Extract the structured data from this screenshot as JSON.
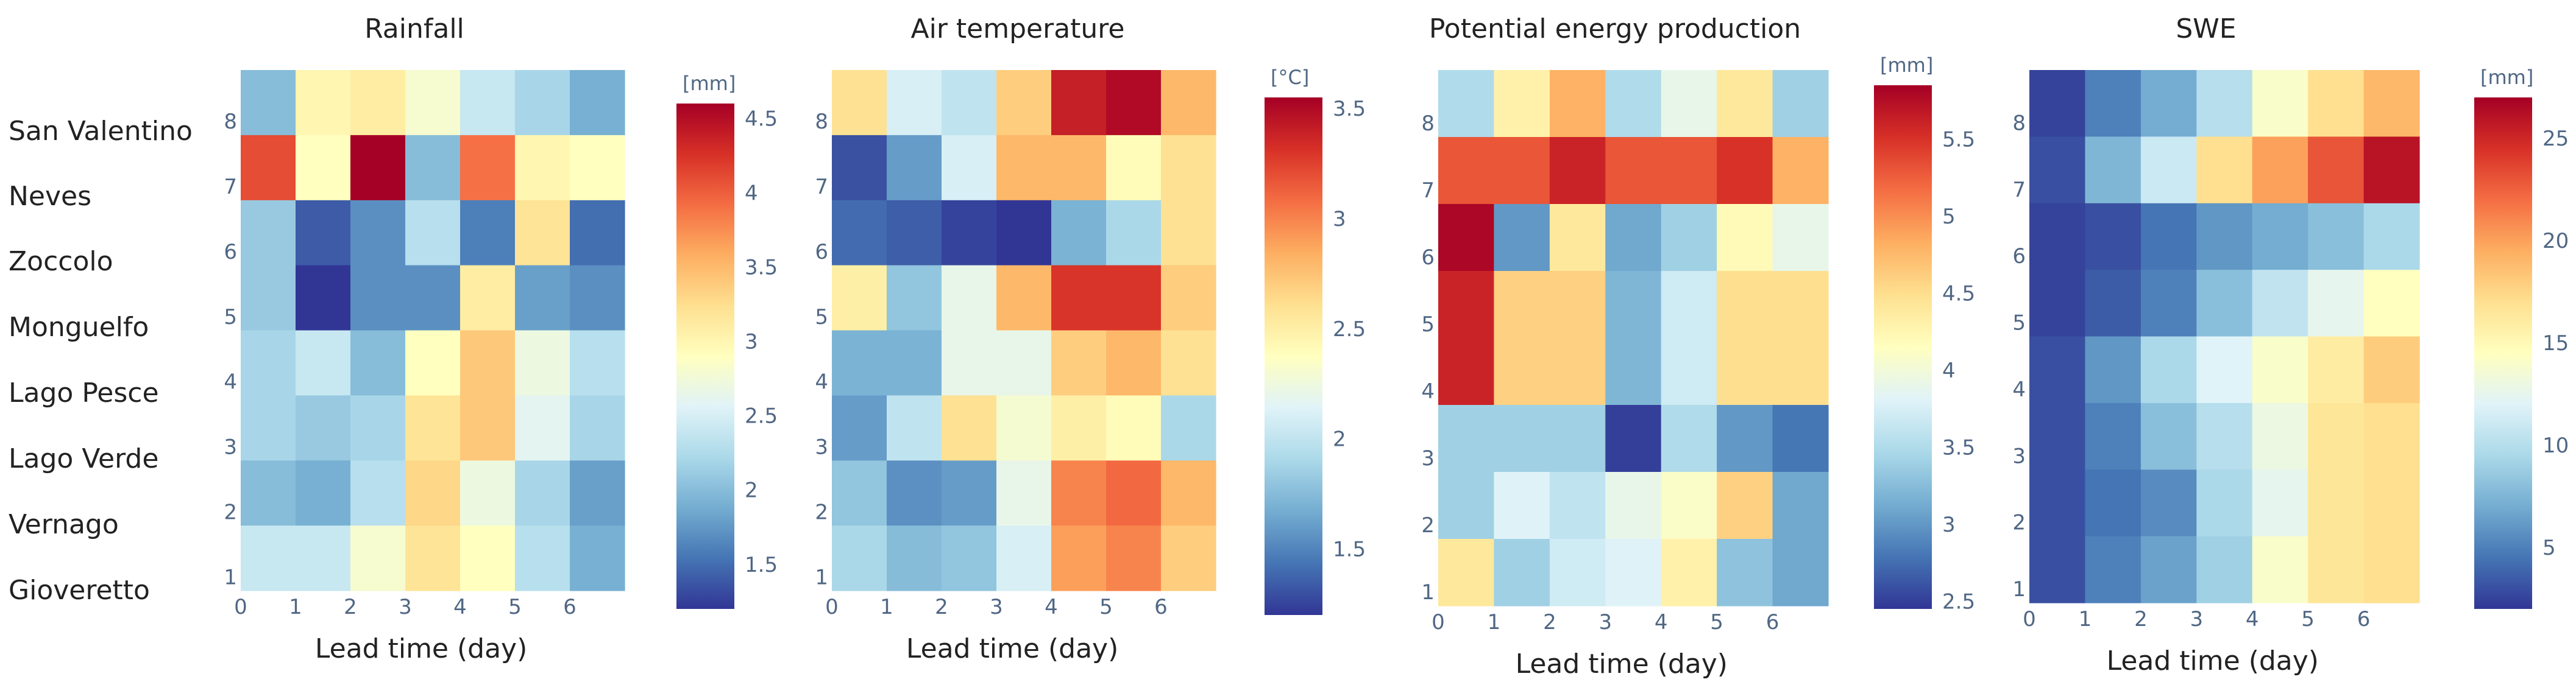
{
  "stations": [
    "San Valentino",
    "Neves",
    "Zoccolo",
    "Monguelfo",
    "Lago Pesce",
    "Lago Verde",
    "Vernago",
    "Gioveretto"
  ],
  "chart_data": [
    {
      "type": "heatmap",
      "title": "Rainfall",
      "xlabel": "Lead time (day)",
      "x_ticks": [
        "0",
        "1",
        "2",
        "3",
        "4",
        "5",
        "6"
      ],
      "y_ticks": [
        "1",
        "2",
        "3",
        "4",
        "5",
        "6",
        "7",
        "8"
      ],
      "colorbar_unit": "[mm]",
      "colorbar_range": [
        1.2,
        4.6
      ],
      "colorbar_ticks": [
        1.5,
        2,
        2.5,
        3,
        3.5,
        4,
        4.5
      ],
      "rows_top_to_bottom": [
        [
          2.0,
          3.0,
          3.1,
          2.8,
          2.4,
          2.2,
          1.9
        ],
        [
          4.1,
          2.9,
          4.6,
          2.0,
          3.9,
          3.0,
          2.9
        ],
        [
          2.1,
          1.4,
          1.7,
          2.3,
          1.6,
          3.2,
          1.5
        ],
        [
          2.1,
          1.2,
          1.7,
          1.7,
          3.1,
          1.8,
          1.7
        ],
        [
          2.2,
          2.4,
          2.0,
          2.9,
          3.4,
          2.7,
          2.3
        ],
        [
          2.2,
          2.1,
          2.2,
          3.2,
          3.4,
          2.6,
          2.2
        ],
        [
          2.0,
          1.9,
          2.3,
          3.3,
          2.7,
          2.2,
          1.8
        ],
        [
          2.4,
          2.4,
          2.8,
          3.2,
          2.9,
          2.3,
          1.9
        ]
      ]
    },
    {
      "type": "heatmap",
      "title": "Air temperature",
      "xlabel": "Lead time (day)",
      "x_ticks": [
        "0",
        "1",
        "2",
        "3",
        "4",
        "5",
        "6"
      ],
      "y_ticks": [
        "1",
        "2",
        "3",
        "4",
        "5",
        "6",
        "7",
        "8"
      ],
      "colorbar_unit": "[°C]",
      "colorbar_range": [
        1.2,
        3.55
      ],
      "colorbar_ticks": [
        1.5,
        2,
        2.5,
        3,
        3.5
      ],
      "rows_top_to_bottom": [
        [
          2.6,
          2.1,
          2.0,
          2.7,
          3.4,
          3.5,
          2.8
        ],
        [
          1.3,
          1.6,
          2.1,
          2.8,
          2.8,
          2.4,
          2.6
        ],
        [
          1.4,
          1.35,
          1.25,
          1.2,
          1.7,
          1.9,
          2.6
        ],
        [
          2.5,
          1.8,
          2.2,
          2.8,
          3.3,
          3.3,
          2.7
        ],
        [
          1.7,
          1.7,
          2.2,
          2.2,
          2.7,
          2.8,
          2.6
        ],
        [
          1.6,
          2.0,
          2.6,
          2.3,
          2.5,
          2.4,
          1.9
        ],
        [
          1.8,
          1.55,
          1.6,
          2.2,
          3.0,
          3.1,
          2.8
        ],
        [
          1.9,
          1.75,
          1.8,
          2.1,
          2.9,
          3.0,
          2.7
        ]
      ]
    },
    {
      "type": "heatmap",
      "title": "Potential energy production",
      "xlabel": "Lead time (day)",
      "x_ticks": [
        "0",
        "1",
        "2",
        "3",
        "4",
        "5",
        "6"
      ],
      "y_ticks": [
        "1",
        "2",
        "3",
        "4",
        "5",
        "6",
        "7",
        "8"
      ],
      "colorbar_unit": "[mm]",
      "colorbar_range": [
        2.45,
        5.85
      ],
      "colorbar_ticks": [
        2.5,
        3,
        3.5,
        4,
        4.5,
        5,
        5.5
      ],
      "rows_top_to_bottom": [
        [
          3.5,
          4.3,
          4.8,
          3.5,
          3.9,
          4.4,
          3.4
        ],
        [
          5.3,
          5.3,
          5.6,
          5.3,
          5.3,
          5.5,
          4.8
        ],
        [
          5.8,
          3.0,
          4.4,
          3.1,
          3.4,
          4.2,
          3.9
        ],
        [
          5.6,
          4.6,
          4.6,
          3.2,
          3.7,
          4.5,
          4.5
        ],
        [
          5.6,
          4.6,
          4.6,
          3.2,
          3.7,
          4.5,
          4.5
        ],
        [
          3.4,
          3.4,
          3.4,
          2.5,
          3.5,
          3.0,
          2.8
        ],
        [
          3.4,
          3.8,
          3.6,
          3.9,
          4.1,
          4.6,
          3.1
        ],
        [
          4.4,
          3.4,
          3.7,
          3.8,
          4.3,
          3.3,
          3.1
        ]
      ]
    },
    {
      "type": "heatmap",
      "title": "SWE",
      "xlabel": "Lead time (day)",
      "x_ticks": [
        "0",
        "1",
        "2",
        "3",
        "4",
        "5",
        "6"
      ],
      "y_ticks": [
        "1",
        "2",
        "3",
        "4",
        "5",
        "6",
        "7",
        "8"
      ],
      "colorbar_unit": "[mm]",
      "colorbar_range": [
        2,
        27
      ],
      "colorbar_ticks": [
        5,
        10,
        15,
        20,
        25
      ],
      "rows_top_to_bottom": [
        [
          2.5,
          5.0,
          7.0,
          10.0,
          14.0,
          17.0,
          19.0
        ],
        [
          3.0,
          7.5,
          11.0,
          17.0,
          20.0,
          23.0,
          26.0
        ],
        [
          2.5,
          3.0,
          4.5,
          6.0,
          7.0,
          8.0,
          9.5
        ],
        [
          2.5,
          3.5,
          5.0,
          8.0,
          10.5,
          12.5,
          14.5
        ],
        [
          3.0,
          6.0,
          9.5,
          12.0,
          14.0,
          16.0,
          18.0
        ],
        [
          3.0,
          5.0,
          8.0,
          10.0,
          13.0,
          16.5,
          17.0
        ],
        [
          3.0,
          4.5,
          5.5,
          9.5,
          12.5,
          16.5,
          17.0
        ],
        [
          3.0,
          5.0,
          6.5,
          9.0,
          14.0,
          16.5,
          17.0
        ]
      ]
    }
  ]
}
